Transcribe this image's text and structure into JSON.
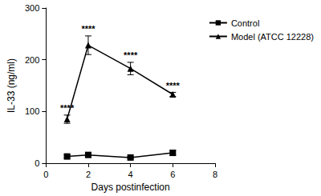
{
  "chart_data": {
    "type": "line",
    "x_label": "Days postinfection",
    "y_label": "IL-33 (ng/ml)",
    "x": [
      1,
      2,
      4,
      6
    ],
    "series": [
      {
        "name": "Control",
        "color": "#000000",
        "marker": "square",
        "values": [
          13,
          16,
          11,
          20
        ],
        "errors": [
          3,
          4,
          2,
          5
        ]
      },
      {
        "name": "Model (ATCC 12228)",
        "color": "#000000",
        "marker": "triangle",
        "values": [
          85,
          228,
          183,
          133
        ],
        "errors": [
          8,
          18,
          12,
          4
        ]
      }
    ],
    "annotations": [
      {
        "x": 1,
        "text": "****"
      },
      {
        "x": 2,
        "text": "****"
      },
      {
        "x": 4,
        "text": "****"
      },
      {
        "x": 6,
        "text": "****"
      }
    ],
    "xlim": [
      0,
      8
    ],
    "xticks": [
      0,
      2,
      4,
      6,
      8
    ],
    "ylim": [
      0,
      300
    ],
    "yticks": [
      0,
      100,
      200,
      300
    ],
    "grid": false,
    "legend": "upper right"
  }
}
